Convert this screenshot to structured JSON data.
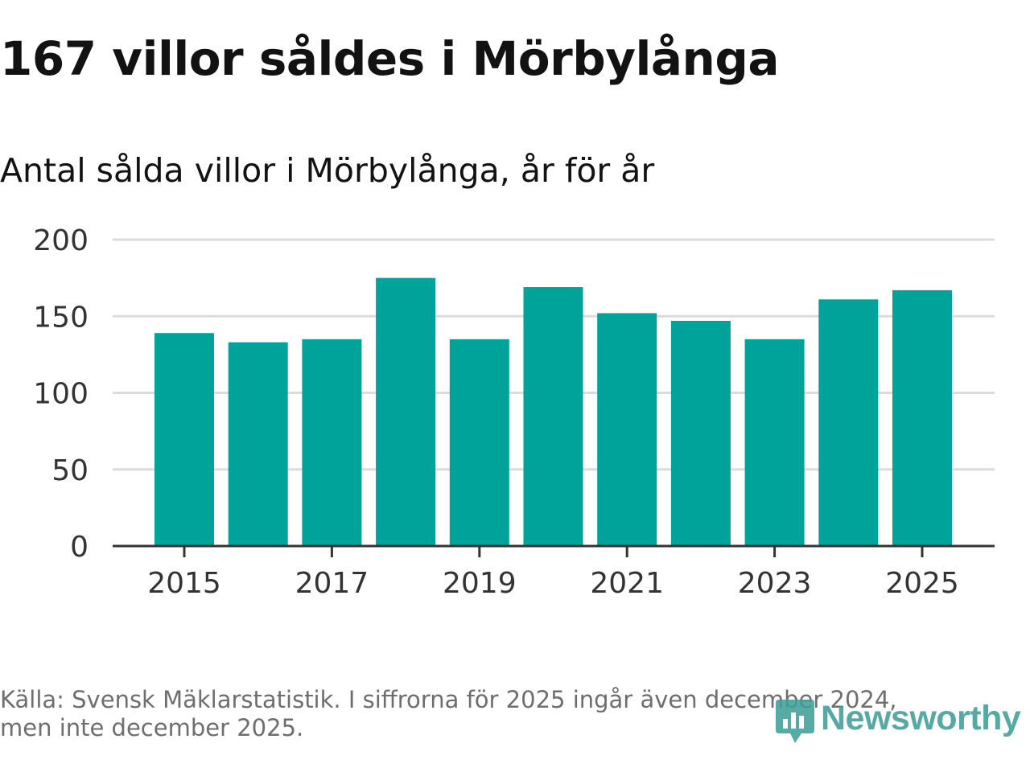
{
  "title": "167 villor såldes i Mörbylånga",
  "subtitle": "Antal sålda villor i Mörbylånga, år för år",
  "source_line1": "Källa: Svensk Mäklarstatistik. I siffrorna för 2025 ingår även december 2024,",
  "source_line2": "men inte december 2025.",
  "brand": {
    "name": "Newsworthy",
    "icon": "newsworthy-logo-icon",
    "color": "#3f9f97"
  },
  "colors": {
    "bar": "#00a39a",
    "grid": "#dcdcdc",
    "axis": "#333333",
    "tick_text": "#333333"
  },
  "chart_data": {
    "type": "bar",
    "title": "Antal sålda villor i Mörbylånga, år för år",
    "xlabel": "",
    "ylabel": "",
    "categories": [
      2015,
      2016,
      2017,
      2018,
      2019,
      2020,
      2021,
      2022,
      2023,
      2024,
      2025
    ],
    "values": [
      139,
      133,
      135,
      175,
      135,
      169,
      152,
      147,
      135,
      161,
      167
    ],
    "x_tick_labels": [
      "2015",
      "2017",
      "2019",
      "2021",
      "2023",
      "2025"
    ],
    "y_ticks": [
      0,
      50,
      100,
      150,
      200
    ],
    "ylim": [
      0,
      200
    ],
    "grid": true
  }
}
